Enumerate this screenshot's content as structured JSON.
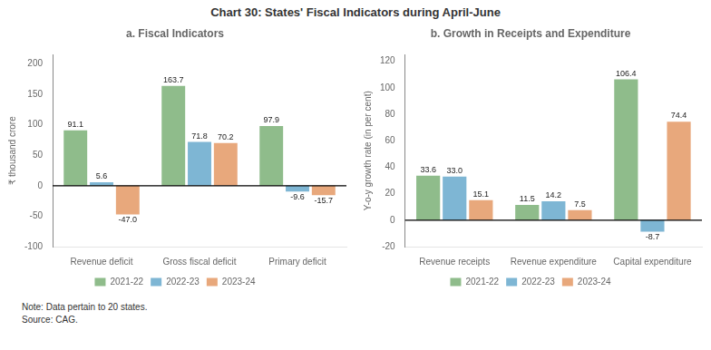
{
  "title": "Chart 30: States' Fiscal Indicators during April-June",
  "annotations": [
    "Note: Data pertain to 20 states.",
    "Source: CAG."
  ],
  "chart_data": [
    {
      "type": "bar",
      "title": "a. Fiscal Indicators",
      "categories": [
        "Revenue deficit",
        "Gross fiscal deficit",
        "Primary deficit"
      ],
      "series": [
        {
          "name": "2021-22",
          "color": "#8FBC8B",
          "values": [
            91.1,
            163.7,
            97.9
          ]
        },
        {
          "name": "2022-23",
          "color": "#7EB6D4",
          "values": [
            5.6,
            71.8,
            -9.6
          ]
        },
        {
          "name": "2023-24",
          "color": "#E8A87C",
          "values": [
            -47.0,
            70.2,
            -15.7
          ],
          "value_labels": [
            "-47.0",
            "70.2",
            "-15.7"
          ]
        }
      ],
      "ylabel": "₹ thousand crore",
      "ylim": [
        -100,
        215
      ],
      "yticks": [
        -100,
        -50,
        0,
        50,
        100,
        150,
        200
      ],
      "grid": false,
      "legend": "bottom",
      "data_labels": true
    },
    {
      "type": "bar",
      "title": "b. Growth in Receipts and Expenditure",
      "categories": [
        "Revenue receipts",
        "Revenue expenditure",
        "Capital expenditure"
      ],
      "series": [
        {
          "name": "2021-22",
          "color": "#8FBC8B",
          "values": [
            33.6,
            11.5,
            106.4
          ]
        },
        {
          "name": "2022-23",
          "color": "#7EB6D4",
          "values": [
            33.0,
            14.2,
            -8.7
          ],
          "value_labels": [
            "33.0",
            "14.2",
            "-8.7"
          ]
        },
        {
          "name": "2023-24",
          "color": "#E8A87C",
          "values": [
            15.1,
            7.5,
            74.4
          ]
        }
      ],
      "ylabel": "Y-o-y growth rate (in per cent)",
      "ylim": [
        -20,
        125
      ],
      "yticks": [
        -20,
        0,
        20,
        40,
        60,
        80,
        100,
        120
      ],
      "grid": false,
      "legend": "bottom",
      "data_labels": true
    }
  ]
}
